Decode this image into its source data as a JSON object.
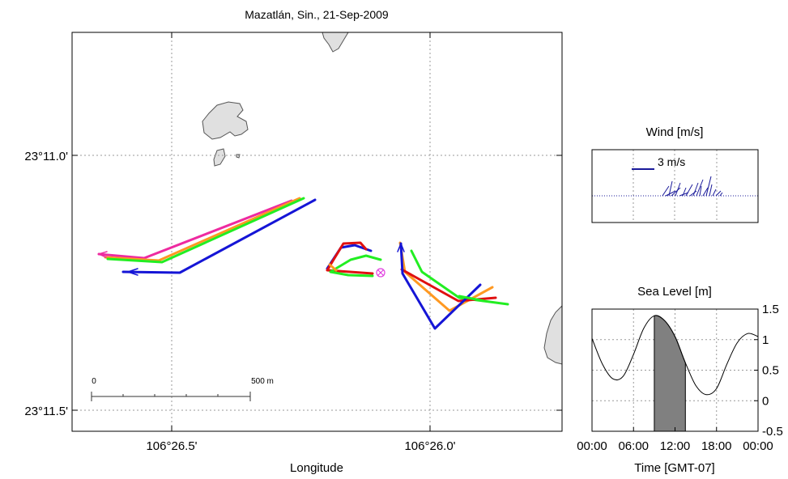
{
  "map": {
    "title": "Mazatlán, Sin., 21-Sep-2009",
    "xlabel": "Longitude",
    "x_ticks": [
      "106°26.5'",
      "106°26.0'"
    ],
    "y_ticks": [
      "23°11.0'",
      "23°11.5'"
    ],
    "scale_bar": {
      "start_label": "0",
      "end_label": "500 m"
    },
    "colors": {
      "land": "#e0e0e0",
      "coast": "#555555",
      "grid": "#999999",
      "blue": "#1515d6",
      "green": "#22ee22",
      "red": "#e01010",
      "magenta": "#ee2aa0",
      "orange": "#ff9922",
      "marker": "#e040e0"
    },
    "drifter_groups": [
      "west tracks",
      "central tracks",
      "east tracks"
    ],
    "release_marker_icon": "circled-x"
  },
  "wind": {
    "title": "Wind [m/s]",
    "scale_label": "3 m/s",
    "color": "#1a1a9a"
  },
  "sea_level": {
    "title": "Sea Level [m]",
    "xlabel": "Time [GMT-07]",
    "x_ticks": [
      "00:00",
      "06:00",
      "12:00",
      "18:00",
      "00:00"
    ],
    "y_ticks": [
      "1.5",
      "1",
      "0.5",
      "0",
      "-0.5"
    ],
    "ylim": [
      -0.5,
      1.5
    ],
    "shaded_interval": [
      "09:00",
      "13:30"
    ]
  },
  "chart_data": {
    "type": "line",
    "title": "Sea Level [m]",
    "xlabel": "Time [GMT-07]",
    "ylabel": "",
    "x": [
      0,
      1.5,
      3,
      4.5,
      6,
      7.5,
      9,
      10.5,
      12,
      13.5,
      15,
      16.5,
      18,
      19.5,
      21,
      22.5,
      24
    ],
    "x_unit": "hours (GMT-07)",
    "values": [
      1.02,
      0.6,
      0.36,
      0.4,
      0.76,
      1.19,
      1.39,
      1.31,
      1.05,
      0.62,
      0.25,
      0.1,
      0.2,
      0.6,
      0.95,
      1.1,
      1.05
    ],
    "xlim": [
      0,
      24
    ],
    "ylim": [
      -0.5,
      1.5
    ],
    "grid": true
  }
}
